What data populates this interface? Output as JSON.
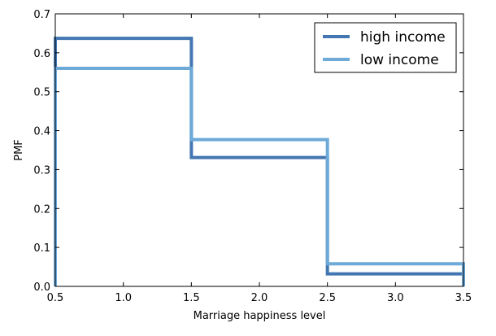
{
  "chart_data": {
    "type": "line",
    "step": "pmf",
    "title": "",
    "xlabel": "Marriage happiness level",
    "ylabel": "PMF",
    "xlim": [
      0.5,
      3.5
    ],
    "ylim": [
      0.0,
      0.7
    ],
    "xticks": [
      "0.5",
      "1.0",
      "1.5",
      "2.0",
      "2.5",
      "3.0",
      "3.5"
    ],
    "yticks": [
      "0.0",
      "0.1",
      "0.2",
      "0.3",
      "0.4",
      "0.5",
      "0.6",
      "0.7"
    ],
    "grid": false,
    "legend_position": "upper right",
    "categories": [
      1,
      2,
      3
    ],
    "series": [
      {
        "name": "high income",
        "values": [
          0.637,
          0.331,
          0.032
        ],
        "color": "#4477b2"
      },
      {
        "name": "low income",
        "values": [
          0.56,
          0.377,
          0.058
        ],
        "color": "#6daad8"
      }
    ]
  }
}
